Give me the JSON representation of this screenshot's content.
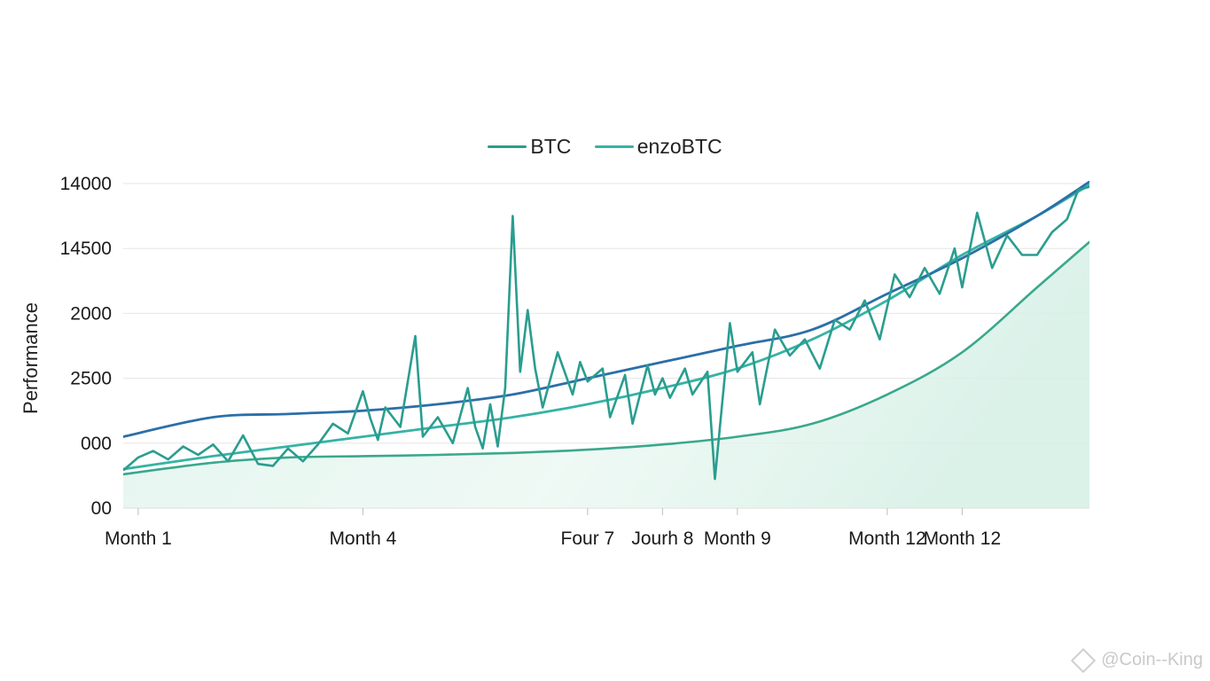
{
  "chart_data": {
    "type": "line",
    "title": "",
    "xlabel": "",
    "ylabel": "Performance",
    "grid": true,
    "legend_position": "top-center",
    "x_tick_labels": [
      {
        "label": "Month 1",
        "x": 1
      },
      {
        "label": "Month 4",
        "x": 4
      },
      {
        "label": "Four 7",
        "x": 7
      },
      {
        "label": "Jourh 8",
        "x": 8
      },
      {
        "label": "Month 9",
        "x": 9
      },
      {
        "label": "Month 12",
        "x": 11
      },
      {
        "label": "Month 12",
        "x": 12
      }
    ],
    "y_tick_labels": [
      {
        "label": "00",
        "y": 0
      },
      {
        "label": "000",
        "y": 1
      },
      {
        "label": "2500",
        "y": 2
      },
      {
        "label": "2000",
        "y": 3
      },
      {
        "label": "14500",
        "y": 4
      },
      {
        "label": "14000",
        "y": 5
      }
    ],
    "xlim": [
      0.8,
      13.7
    ],
    "ylim": [
      0,
      5
    ],
    "series": [
      {
        "name": "BTC",
        "color": "#2a9d8f",
        "style": "volatile",
        "points": [
          [
            0.8,
            0.58
          ],
          [
            1.0,
            0.78
          ],
          [
            1.2,
            0.88
          ],
          [
            1.4,
            0.75
          ],
          [
            1.6,
            0.95
          ],
          [
            1.8,
            0.82
          ],
          [
            2.0,
            0.98
          ],
          [
            2.2,
            0.72
          ],
          [
            2.4,
            1.12
          ],
          [
            2.6,
            0.68
          ],
          [
            2.8,
            0.65
          ],
          [
            3.0,
            0.92
          ],
          [
            3.2,
            0.72
          ],
          [
            3.4,
            0.98
          ],
          [
            3.6,
            1.3
          ],
          [
            3.8,
            1.15
          ],
          [
            4.0,
            1.8
          ],
          [
            4.1,
            1.38
          ],
          [
            4.2,
            1.05
          ],
          [
            4.3,
            1.55
          ],
          [
            4.5,
            1.25
          ],
          [
            4.7,
            2.65
          ],
          [
            4.8,
            1.1
          ],
          [
            5.0,
            1.4
          ],
          [
            5.2,
            1.0
          ],
          [
            5.4,
            1.85
          ],
          [
            5.5,
            1.25
          ],
          [
            5.6,
            0.92
          ],
          [
            5.7,
            1.6
          ],
          [
            5.8,
            0.95
          ],
          [
            5.9,
            1.85
          ],
          [
            6.0,
            4.5
          ],
          [
            6.1,
            2.1
          ],
          [
            6.2,
            3.05
          ],
          [
            6.3,
            2.15
          ],
          [
            6.4,
            1.55
          ],
          [
            6.6,
            2.4
          ],
          [
            6.8,
            1.75
          ],
          [
            6.9,
            2.25
          ],
          [
            7.0,
            1.95
          ],
          [
            7.2,
            2.15
          ],
          [
            7.3,
            1.4
          ],
          [
            7.5,
            2.05
          ],
          [
            7.6,
            1.3
          ],
          [
            7.8,
            2.2
          ],
          [
            7.9,
            1.75
          ],
          [
            8.0,
            2.0
          ],
          [
            8.1,
            1.7
          ],
          [
            8.3,
            2.15
          ],
          [
            8.4,
            1.75
          ],
          [
            8.6,
            2.1
          ],
          [
            8.7,
            0.45
          ],
          [
            8.9,
            2.85
          ],
          [
            9.0,
            2.1
          ],
          [
            9.2,
            2.4
          ],
          [
            9.3,
            1.6
          ],
          [
            9.5,
            2.75
          ],
          [
            9.7,
            2.35
          ],
          [
            9.9,
            2.6
          ],
          [
            10.1,
            2.15
          ],
          [
            10.3,
            2.9
          ],
          [
            10.5,
            2.75
          ],
          [
            10.7,
            3.2
          ],
          [
            10.9,
            2.6
          ],
          [
            11.1,
            3.6
          ],
          [
            11.3,
            3.25
          ],
          [
            11.5,
            3.7
          ],
          [
            11.7,
            3.3
          ],
          [
            11.9,
            4.0
          ],
          [
            12.0,
            3.4
          ],
          [
            12.2,
            4.55
          ],
          [
            12.4,
            3.7
          ],
          [
            12.6,
            4.2
          ],
          [
            12.8,
            3.9
          ],
          [
            13.0,
            3.9
          ],
          [
            13.2,
            4.25
          ],
          [
            13.4,
            4.45
          ],
          [
            13.55,
            4.9
          ],
          [
            13.7,
            4.95
          ]
        ]
      },
      {
        "name": "enzoBTC",
        "color": "#35b3a5",
        "style": "smooth",
        "points": [
          [
            0.8,
            0.6
          ],
          [
            2,
            0.8
          ],
          [
            3,
            0.95
          ],
          [
            4,
            1.1
          ],
          [
            5,
            1.25
          ],
          [
            6,
            1.4
          ],
          [
            7,
            1.6
          ],
          [
            8,
            1.85
          ],
          [
            9,
            2.15
          ],
          [
            10,
            2.6
          ],
          [
            11,
            3.2
          ],
          [
            12,
            3.9
          ],
          [
            13,
            4.5
          ],
          [
            13.7,
            4.98
          ]
        ]
      },
      {
        "name": "",
        "color": "#2b6fa8",
        "style": "smooth",
        "points": [
          [
            0.8,
            1.1
          ],
          [
            2,
            1.4
          ],
          [
            3,
            1.45
          ],
          [
            4,
            1.5
          ],
          [
            5,
            1.6
          ],
          [
            6,
            1.75
          ],
          [
            7,
            2.0
          ],
          [
            8,
            2.25
          ],
          [
            9,
            2.5
          ],
          [
            10,
            2.75
          ],
          [
            11,
            3.3
          ],
          [
            12,
            3.85
          ],
          [
            13,
            4.5
          ],
          [
            13.7,
            5.05
          ]
        ]
      },
      {
        "name": "",
        "color": "#3aa88c",
        "style": "smooth-area",
        "points": [
          [
            0.8,
            0.52
          ],
          [
            2,
            0.7
          ],
          [
            3,
            0.78
          ],
          [
            4,
            0.8
          ],
          [
            5,
            0.82
          ],
          [
            6,
            0.85
          ],
          [
            7,
            0.9
          ],
          [
            8,
            0.98
          ],
          [
            9,
            1.1
          ],
          [
            10,
            1.3
          ],
          [
            11,
            1.75
          ],
          [
            12,
            2.4
          ],
          [
            13,
            3.4
          ],
          [
            13.7,
            4.1
          ]
        ]
      }
    ]
  },
  "legend": {
    "items": [
      {
        "label": "BTC",
        "color": "#2a9d8f"
      },
      {
        "label": "enzoBTC",
        "color": "#35b3a5"
      }
    ]
  },
  "watermark": {
    "text": "@Coin--King"
  }
}
